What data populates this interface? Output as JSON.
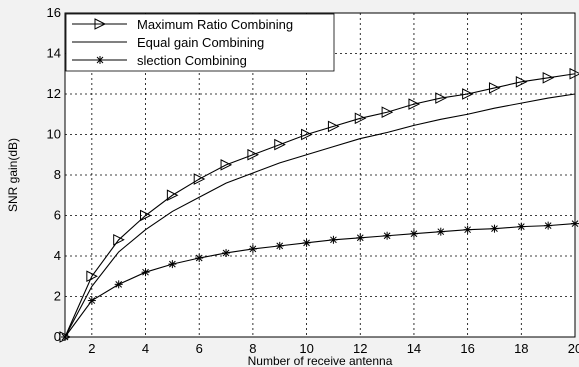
{
  "chart_data": {
    "type": "line",
    "title": "",
    "xlabel": "Number of receive antenna",
    "ylabel": "SNR gain(dB)",
    "xlim": [
      1,
      20
    ],
    "ylim": [
      0,
      16
    ],
    "xticks": [
      2,
      4,
      6,
      8,
      10,
      12,
      14,
      16,
      18,
      20
    ],
    "yticks": [
      0,
      2,
      4,
      6,
      8,
      10,
      12,
      14,
      16
    ],
    "grid": true,
    "legend_position": "top-left",
    "series": [
      {
        "name": "Maximum Ratio Combining",
        "marker": "triangle-right",
        "x": [
          1,
          2,
          3,
          4,
          5,
          6,
          7,
          8,
          9,
          10,
          11,
          12,
          13,
          14,
          15,
          16,
          17,
          18,
          19,
          20
        ],
        "values": [
          0,
          3.0,
          4.8,
          6.0,
          7.0,
          7.8,
          8.5,
          9.0,
          9.5,
          10.0,
          10.4,
          10.8,
          11.1,
          11.5,
          11.8,
          12.0,
          12.3,
          12.6,
          12.8,
          13.0
        ]
      },
      {
        "name": "Equal gain Combining",
        "marker": "none",
        "x": [
          1,
          2,
          3,
          4,
          5,
          6,
          7,
          8,
          9,
          10,
          11,
          12,
          13,
          14,
          15,
          16,
          17,
          18,
          19,
          20
        ],
        "values": [
          0,
          2.5,
          4.2,
          5.3,
          6.2,
          6.9,
          7.6,
          8.1,
          8.6,
          9.0,
          9.4,
          9.8,
          10.1,
          10.45,
          10.75,
          11.0,
          11.3,
          11.55,
          11.8,
          12.0
        ]
      },
      {
        "name": "slection Combining",
        "marker": "asterisk",
        "x": [
          1,
          2,
          3,
          4,
          5,
          6,
          7,
          8,
          9,
          10,
          11,
          12,
          13,
          14,
          15,
          16,
          17,
          18,
          19,
          20
        ],
        "values": [
          0,
          1.8,
          2.6,
          3.2,
          3.6,
          3.9,
          4.15,
          4.35,
          4.5,
          4.65,
          4.8,
          4.9,
          5.0,
          5.1,
          5.2,
          5.3,
          5.35,
          5.45,
          5.5,
          5.6
        ]
      }
    ]
  }
}
